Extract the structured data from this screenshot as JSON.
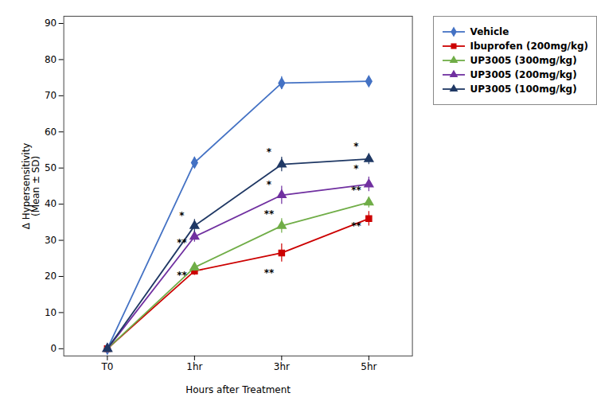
{
  "chart_data": {
    "type": "line",
    "categories": [
      "T0",
      "1hr",
      "3hr",
      "5hr"
    ],
    "series": [
      {
        "name": "Vehicle",
        "color": "#4472C4",
        "marker": "diamond",
        "values": [
          0,
          51.5,
          73.5,
          74.0
        ],
        "errors": [
          0,
          1.5,
          1.8,
          1.2
        ]
      },
      {
        "name": "Ibuprofen (200mg/kg)",
        "color": "#CC0000",
        "marker": "square",
        "values": [
          0,
          21.5,
          26.5,
          36.0
        ],
        "errors": [
          0,
          1.2,
          2.5,
          2.0
        ]
      },
      {
        "name": "UP3005 (300mg/kg)",
        "color": "#70AD47",
        "marker": "triangle",
        "values": [
          0,
          22.5,
          34.0,
          40.5
        ],
        "errors": [
          0,
          1.0,
          2.0,
          1.5
        ]
      },
      {
        "name": "UP3005 (200mg/kg)",
        "color": "#7030A0",
        "marker": "triangle",
        "values": [
          0,
          31.0,
          42.5,
          45.5
        ],
        "errors": [
          0,
          1.5,
          2.5,
          2.0
        ]
      },
      {
        "name": "UP3005 (100mg/kg)",
        "color": "#1F3864",
        "marker": "triangle",
        "values": [
          0,
          34.0,
          51.0,
          52.5
        ],
        "errors": [
          0,
          1.8,
          2.0,
          1.5
        ]
      }
    ],
    "ylabel": "Δ Hypersensitivity\n(Mean ± SD)",
    "xlabel": "Hours after Treatment",
    "ylim": [
      -2,
      92
    ],
    "yticks": [
      0,
      10,
      20,
      30,
      40,
      50,
      60,
      70,
      80,
      90
    ],
    "grid": false,
    "legend": "right",
    "annotations": [
      {
        "x": "1hr",
        "y": 36.0,
        "text": "*"
      },
      {
        "x": "1hr",
        "y": 28.5,
        "text": "**"
      },
      {
        "x": "1hr",
        "y": 19.5,
        "text": "**"
      },
      {
        "x": "3hr",
        "y": 53.5,
        "text": "*"
      },
      {
        "x": "3hr",
        "y": 44.5,
        "text": "*"
      },
      {
        "x": "3hr",
        "y": 36.5,
        "text": "**"
      },
      {
        "x": "3hr",
        "y": 20.0,
        "text": "**"
      },
      {
        "x": "5hr",
        "y": 55.0,
        "text": "*"
      },
      {
        "x": "5hr",
        "y": 49.0,
        "text": "*"
      },
      {
        "x": "5hr",
        "y": 43.0,
        "text": "**"
      },
      {
        "x": "5hr",
        "y": 33.0,
        "text": "**"
      }
    ]
  }
}
